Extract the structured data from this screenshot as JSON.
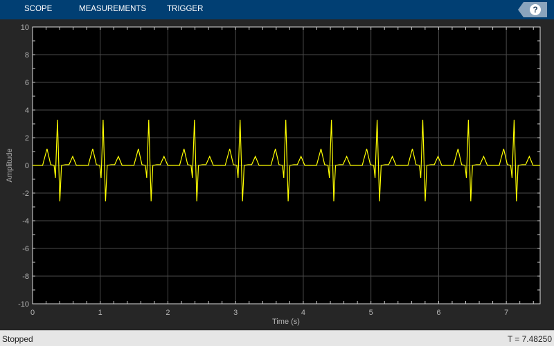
{
  "toolstrip": {
    "tabs": [
      "SCOPE",
      "MEASUREMENTS",
      "TRIGGER"
    ],
    "help_icon": "question-mark-icon"
  },
  "status": {
    "state": "Stopped",
    "time": "T = 7.48250"
  },
  "chart_data": {
    "type": "line",
    "title": "",
    "xlabel": "Time (s)",
    "ylabel": "Amplitude",
    "xlim": [
      0,
      7.5
    ],
    "ylim": [
      -10,
      10
    ],
    "xticks": [
      0,
      1,
      2,
      3,
      4,
      5,
      6,
      7
    ],
    "yticks": [
      -10,
      -8,
      -6,
      -4,
      -2,
      0,
      2,
      4,
      6,
      8,
      10
    ],
    "grid": true,
    "background": "#000000",
    "line_color": "#ffff00",
    "series": [
      {
        "description_of_shape": "periodic ECG-like waveform",
        "r_peak_times": [
          0.368,
          1.043,
          1.717,
          2.392,
          3.067,
          3.742,
          4.416,
          5.091,
          5.766,
          6.44,
          7.115
        ],
        "beat_template": {
          "offset_s": [
            -0.22,
            -0.154,
            -0.1,
            -0.05,
            -0.03,
            0,
            0.035,
            0.06,
            0.12,
            0.17,
            0.225,
            0.28
          ],
          "amplitude": [
            0,
            1.2,
            0.05,
            0,
            -0.9,
            3.3,
            -2.6,
            0,
            0.05,
            0.05,
            0.65,
            0
          ]
        }
      }
    ]
  }
}
